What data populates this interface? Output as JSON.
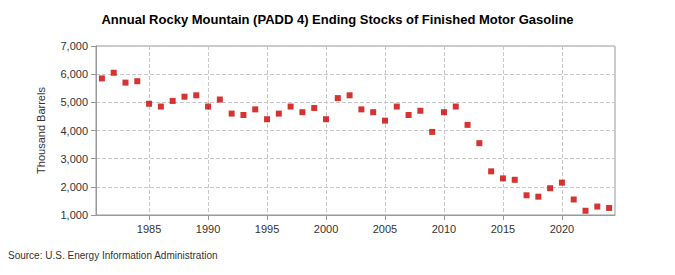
{
  "chart_data": {
    "type": "scatter",
    "title": "Annual Rocky Mountain (PADD 4) Ending Stocks of Finished Motor Gasoline",
    "y_label": "Thousand Barrels",
    "source": "Source: U.S. Energy Information Administration",
    "x": [
      1981,
      1982,
      1983,
      1984,
      1985,
      1986,
      1987,
      1988,
      1989,
      1990,
      1991,
      1992,
      1993,
      1994,
      1995,
      1996,
      1997,
      1998,
      1999,
      2000,
      2001,
      2002,
      2003,
      2004,
      2005,
      2006,
      2007,
      2008,
      2009,
      2010,
      2011,
      2012,
      2013,
      2014,
      2015,
      2016,
      2017,
      2018,
      2019,
      2020,
      2021,
      2022,
      2023,
      2024
    ],
    "values": [
      5850,
      6050,
      5700,
      5750,
      4950,
      4850,
      5050,
      5200,
      5250,
      4850,
      5100,
      4600,
      4550,
      4750,
      4400,
      4600,
      4850,
      4650,
      4800,
      4400,
      5150,
      5250,
      4750,
      4650,
      4350,
      4850,
      4550,
      4700,
      3950,
      4650,
      4850,
      4200,
      3550,
      2550,
      2300,
      2250,
      1700,
      1650,
      1950,
      2150,
      1550,
      1150,
      1300,
      1250
    ],
    "color": "#cc0000",
    "marker": "square",
    "xlim": [
      1980.5,
      2024.5
    ],
    "xticks": [
      1985,
      1990,
      1995,
      2000,
      2005,
      2010,
      2015,
      2020
    ],
    "ylim": [
      1000,
      7000
    ],
    "yticks": [
      {
        "value": 1000,
        "label": "1,000"
      },
      {
        "value": 2000,
        "label": "2,000"
      },
      {
        "value": 3000,
        "label": "3,000"
      },
      {
        "value": 4000,
        "label": "4,000"
      },
      {
        "value": 5000,
        "label": "5,000"
      },
      {
        "value": 6000,
        "label": "6,000"
      },
      {
        "value": 7000,
        "label": "7,000"
      }
    ],
    "grid": true
  }
}
